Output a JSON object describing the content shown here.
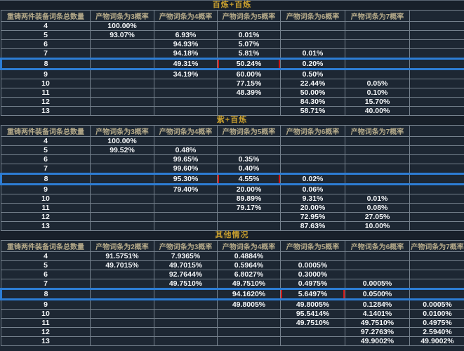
{
  "colors": {
    "background": "#1d2733",
    "grid_line": "#76828e",
    "title_gold": "#c59d2f",
    "header_text": "#b5aa8a",
    "value_text": "#f4f6f8",
    "highlight_blue": "#2d7dd4",
    "annotation_red": "#cd1717"
  },
  "sections": [
    {
      "title": "百炼+百炼",
      "col_headers": [
        "重铸两件装备词条总数量",
        "产物词条为3概率",
        "产物词条为4概率",
        "产物词条为5概率",
        "产物词条为6概率",
        "产物词条为7概率",
        ""
      ],
      "rows": [
        {
          "cells": [
            "4",
            "100.00%",
            "",
            "",
            "",
            "",
            ""
          ]
        },
        {
          "cells": [
            "5",
            "93.07%",
            "6.93%",
            "0.01%",
            "",
            "",
            ""
          ]
        },
        {
          "cells": [
            "6",
            "",
            "94.93%",
            "5.07%",
            "",
            "",
            ""
          ]
        },
        {
          "cells": [
            "7",
            "",
            "94.18%",
            "5.81%",
            "0.01%",
            "",
            ""
          ]
        },
        {
          "cells": [
            "8",
            "",
            "49.31%",
            "50.24%",
            "0.20%",
            "",
            ""
          ],
          "highlight": true,
          "red_cell_index": 3
        },
        {
          "cells": [
            "9",
            "",
            "34.19%",
            "60.00%",
            "0.50%",
            "",
            ""
          ]
        },
        {
          "cells": [
            "10",
            "",
            "",
            "77.15%",
            "22.44%",
            "0.05%",
            ""
          ]
        },
        {
          "cells": [
            "11",
            "",
            "",
            "48.39%",
            "50.00%",
            "0.10%",
            ""
          ]
        },
        {
          "cells": [
            "12",
            "",
            "",
            "",
            "84.30%",
            "15.70%",
            ""
          ]
        },
        {
          "cells": [
            "13",
            "",
            "",
            "",
            "58.71%",
            "40.00%",
            ""
          ]
        }
      ]
    },
    {
      "title": "紫+百炼",
      "col_headers": [
        "重铸两件装备词条总数量",
        "产物词条为3概率",
        "产物词条为4概率",
        "产物词条为5概率",
        "产物词条为6概率",
        "产物词条为7概率",
        ""
      ],
      "rows": [
        {
          "cells": [
            "4",
            "100.00%",
            "",
            "",
            "",
            "",
            ""
          ]
        },
        {
          "cells": [
            "5",
            "99.52%",
            "0.48%",
            "",
            "",
            "",
            ""
          ]
        },
        {
          "cells": [
            "6",
            "",
            "99.65%",
            "0.35%",
            "",
            "",
            ""
          ]
        },
        {
          "cells": [
            "7",
            "",
            "99.60%",
            "0.40%",
            "",
            "",
            ""
          ]
        },
        {
          "cells": [
            "8",
            "",
            "95.30%",
            "4.55%",
            "0.02%",
            "",
            ""
          ],
          "highlight": true,
          "red_cell_index": 3
        },
        {
          "cells": [
            "9",
            "",
            "79.40%",
            "20.00%",
            "0.06%",
            "",
            ""
          ]
        },
        {
          "cells": [
            "10",
            "",
            "",
            "89.89%",
            "9.31%",
            "0.01%",
            ""
          ]
        },
        {
          "cells": [
            "11",
            "",
            "",
            "79.17%",
            "20.00%",
            "0.08%",
            ""
          ]
        },
        {
          "cells": [
            "12",
            "",
            "",
            "",
            "72.95%",
            "27.05%",
            ""
          ]
        },
        {
          "cells": [
            "13",
            "",
            "",
            "",
            "87.63%",
            "10.00%",
            ""
          ]
        }
      ]
    },
    {
      "title": "其他情况",
      "col_headers": [
        "重铸两件装备词条总数量",
        "产物词条为2概率",
        "产物词条为3概率",
        "产物词条为4概率",
        "产物词条为5概率",
        "产物词条为6概率",
        "产物词条为7概率"
      ],
      "rows": [
        {
          "cells": [
            "4",
            "91.5751%",
            "7.9365%",
            "0.4884%",
            "",
            "",
            ""
          ]
        },
        {
          "cells": [
            "5",
            "49.7015%",
            "49.7015%",
            "0.5964%",
            "0.0005%",
            "",
            ""
          ]
        },
        {
          "cells": [
            "6",
            "",
            "92.7644%",
            "6.8027%",
            "0.3000%",
            "",
            ""
          ]
        },
        {
          "cells": [
            "7",
            "",
            "49.7510%",
            "49.7510%",
            "0.4975%",
            "0.0005%",
            ""
          ]
        },
        {
          "cells": [
            "8",
            "",
            "",
            "94.1620%",
            "5.6497%",
            "0.0500%",
            ""
          ],
          "highlight": true,
          "red_cell_index": 4
        },
        {
          "cells": [
            "9",
            "",
            "",
            "49.8005%",
            "49.8005%",
            "0.1284%",
            "0.0005%"
          ]
        },
        {
          "cells": [
            "10",
            "",
            "",
            "",
            "95.5414%",
            "4.1401%",
            "0.0100%"
          ]
        },
        {
          "cells": [
            "11",
            "",
            "",
            "",
            "49.7510%",
            "49.7510%",
            "0.4975%"
          ]
        },
        {
          "cells": [
            "12",
            "",
            "",
            "",
            "",
            "97.2763%",
            "2.5940%"
          ]
        },
        {
          "cells": [
            "13",
            "",
            "",
            "",
            "",
            "49.9002%",
            "49.9002%"
          ]
        }
      ]
    }
  ]
}
